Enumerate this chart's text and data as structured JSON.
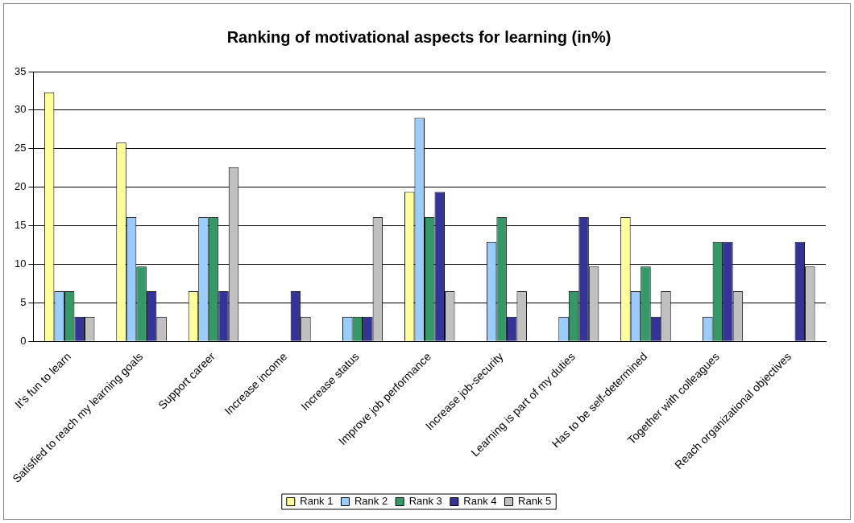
{
  "chart_data": {
    "type": "bar",
    "title": "Ranking of motivational aspects for learning (in%)",
    "categories": [
      "It's fun to learn",
      "Satisfied to reach my learning goals",
      "Support career",
      "Increase income",
      "Increase status",
      "Improve job performance",
      "Increase job-security",
      "Learning is part of my duties",
      "Has to be self-determined",
      "Together with colleagues",
      "Reach organizational objectives"
    ],
    "series": [
      {
        "name": "Rank 1",
        "color": "#ffff99",
        "values": [
          32.3,
          25.8,
          6.5,
          0,
          0,
          19.4,
          0,
          0,
          16.1,
          0,
          0
        ]
      },
      {
        "name": "Rank 2",
        "color": "#99ccff",
        "values": [
          6.5,
          16.1,
          16.1,
          0,
          3.2,
          29.0,
          12.9,
          3.2,
          6.5,
          3.2,
          0
        ]
      },
      {
        "name": "Rank 3",
        "color": "#339966",
        "values": [
          6.5,
          9.7,
          16.1,
          0,
          3.2,
          16.1,
          16.1,
          6.5,
          9.7,
          12.9,
          0
        ]
      },
      {
        "name": "Rank 4",
        "color": "#333399",
        "values": [
          3.2,
          6.5,
          6.5,
          6.5,
          3.2,
          19.4,
          3.2,
          16.1,
          3.2,
          12.9,
          12.9
        ]
      },
      {
        "name": "Rank 5",
        "color": "#c0c0c0",
        "values": [
          3.2,
          3.2,
          22.6,
          3.2,
          16.1,
          6.5,
          6.5,
          9.7,
          6.5,
          6.5,
          9.7
        ]
      }
    ],
    "ylim": [
      0,
      35
    ],
    "yticks": [
      0,
      5,
      10,
      15,
      20,
      25,
      30,
      35
    ],
    "grid": "y",
    "legend": "bottom"
  }
}
